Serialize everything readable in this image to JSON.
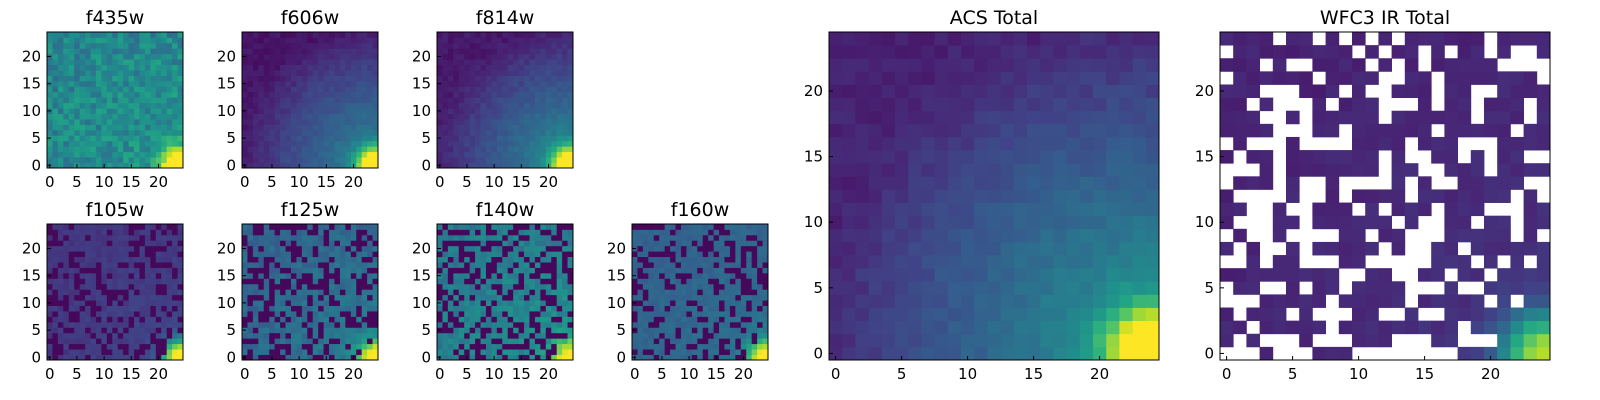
{
  "chart_data": [
    {
      "type": "heatmap",
      "title": "f435w",
      "xlim": [
        0,
        24
      ],
      "ylim": [
        0,
        24
      ],
      "xticks": [
        "0",
        "5",
        "10",
        "15",
        "20"
      ],
      "yticks": [
        "0",
        "5",
        "10",
        "15",
        "20"
      ],
      "colormap": "viridis",
      "seed": 11,
      "base": 0.46,
      "bright_spot": 1.0,
      "gradient": 0.06,
      "noise": 0.22,
      "mask_fraction": 0,
      "dark_fraction": 0
    },
    {
      "type": "heatmap",
      "title": "f606w",
      "xlim": [
        0,
        24
      ],
      "ylim": [
        0,
        24
      ],
      "xticks": [
        "0",
        "5",
        "10",
        "15",
        "20"
      ],
      "yticks": [
        "0",
        "5",
        "10",
        "15",
        "20"
      ],
      "colormap": "viridis",
      "seed": 23,
      "base": 0.06,
      "bright_spot": 0.95,
      "gradient": 0.42,
      "noise": 0.06,
      "mask_fraction": 0,
      "dark_fraction": 0
    },
    {
      "type": "heatmap",
      "title": "f814w",
      "xlim": [
        0,
        24
      ],
      "ylim": [
        0,
        24
      ],
      "xticks": [
        "0",
        "5",
        "10",
        "15",
        "20"
      ],
      "yticks": [
        "0",
        "5",
        "10",
        "15",
        "20"
      ],
      "colormap": "viridis",
      "seed": 37,
      "base": 0.07,
      "bright_spot": 0.95,
      "gradient": 0.45,
      "noise": 0.06,
      "mask_fraction": 0,
      "dark_fraction": 0
    },
    {
      "type": "heatmap",
      "title": "f105w",
      "xlim": [
        0,
        24
      ],
      "ylim": [
        0,
        24
      ],
      "xticks": [
        "0",
        "5",
        "10",
        "15",
        "20"
      ],
      "yticks": [
        "0",
        "5",
        "10",
        "15",
        "20"
      ],
      "colormap": "viridis",
      "seed": 41,
      "base": 0.16,
      "bright_spot": 0.95,
      "gradient": 0.05,
      "noise": 0.05,
      "mask_fraction": 0,
      "dark_fraction": 0.3
    },
    {
      "type": "heatmap",
      "title": "f125w",
      "xlim": [
        0,
        24
      ],
      "ylim": [
        0,
        24
      ],
      "xticks": [
        "0",
        "5",
        "10",
        "15",
        "20"
      ],
      "yticks": [
        "0",
        "5",
        "10",
        "15",
        "20"
      ],
      "colormap": "viridis",
      "seed": 53,
      "base": 0.33,
      "bright_spot": 0.7,
      "gradient": 0.08,
      "noise": 0.1,
      "mask_fraction": 0,
      "dark_fraction": 0.35
    },
    {
      "type": "heatmap",
      "title": "f140w",
      "xlim": [
        0,
        24
      ],
      "ylim": [
        0,
        24
      ],
      "xticks": [
        "0",
        "5",
        "10",
        "15",
        "20"
      ],
      "yticks": [
        "0",
        "5",
        "10",
        "15",
        "20"
      ],
      "colormap": "viridis",
      "seed": 67,
      "base": 0.42,
      "bright_spot": 0.6,
      "gradient": 0.08,
      "noise": 0.12,
      "mask_fraction": 0,
      "dark_fraction": 0.35
    },
    {
      "type": "heatmap",
      "title": "f160w",
      "xlim": [
        0,
        24
      ],
      "ylim": [
        0,
        24
      ],
      "xticks": [
        "0",
        "5",
        "10",
        "15",
        "20"
      ],
      "yticks": [
        "0",
        "5",
        "10",
        "15",
        "20"
      ],
      "colormap": "viridis",
      "seed": 71,
      "base": 0.32,
      "bright_spot": 0.75,
      "gradient": 0.05,
      "noise": 0.06,
      "mask_fraction": 0,
      "dark_fraction": 0.3
    },
    {
      "type": "heatmap",
      "title": "ACS Total",
      "xlim": [
        0,
        24
      ],
      "ylim": [
        0,
        24
      ],
      "xticks": [
        "0",
        "5",
        "10",
        "15",
        "20"
      ],
      "yticks": [
        "0",
        "5",
        "10",
        "15",
        "20"
      ],
      "colormap": "viridis",
      "seed": 83,
      "base": 0.1,
      "bright_spot": 0.95,
      "gradient": 0.45,
      "noise": 0.06,
      "mask_fraction": 0,
      "dark_fraction": 0
    },
    {
      "type": "heatmap",
      "title": "WFC3 IR Total",
      "xlim": [
        0,
        24
      ],
      "ylim": [
        0,
        24
      ],
      "xticks": [
        "0",
        "5",
        "10",
        "15",
        "20"
      ],
      "yticks": [
        "0",
        "5",
        "10",
        "15",
        "20"
      ],
      "colormap": "viridis",
      "seed": 97,
      "base": 0.1,
      "bright_spot": 0.75,
      "gradient": 0.05,
      "noise": 0.04,
      "mask_fraction": 0.35,
      "dark_fraction": 0
    }
  ]
}
